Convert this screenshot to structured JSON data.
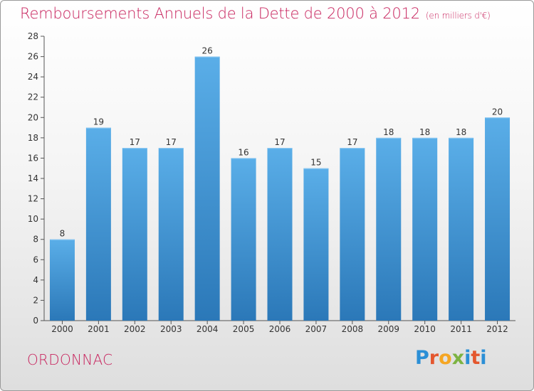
{
  "title": "Remboursements Annuels de la Dette de 2000 à 2012",
  "unit": "(en milliers d'€)",
  "commune": "ORDONNAC",
  "logo_text": "Proxiti",
  "colors": {
    "title": "#c8245e",
    "bar_top": "#5aaee8",
    "bar_bottom": "#2b78b8",
    "logo": [
      "#2b8fd6",
      "#e4572e",
      "#f5a623",
      "#7cb342",
      "#2b8fd6",
      "#e4572e",
      "#2b8fd6"
    ]
  },
  "chart_data": {
    "type": "bar",
    "categories": [
      "2000",
      "2001",
      "2002",
      "2003",
      "2004",
      "2005",
      "2006",
      "2007",
      "2008",
      "2009",
      "2010",
      "2011",
      "2012"
    ],
    "values": [
      8,
      19,
      17,
      17,
      26,
      16,
      17,
      15,
      17,
      18,
      18,
      18,
      20
    ],
    "ylim": [
      0,
      28
    ],
    "yticks": [
      0,
      2,
      4,
      6,
      8,
      10,
      12,
      14,
      16,
      18,
      20,
      22,
      24,
      26,
      28
    ],
    "grid": false,
    "legend": "none"
  }
}
